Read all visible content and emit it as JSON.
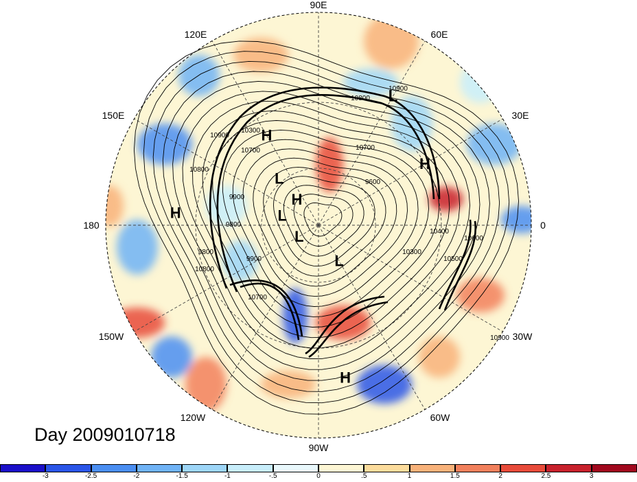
{
  "title": "Day 2009010718",
  "longitude_labels": {
    "e90": "90E",
    "e60": "60E",
    "e30": "30E",
    "zero": "0",
    "w30": "30W",
    "w60": "60W",
    "w90": "90W",
    "w120": "120W",
    "w150": "150W",
    "deg180": "180",
    "e150": "150E",
    "e120": "120E"
  },
  "pressure_centers": [
    {
      "label": "H",
      "lon": 120,
      "lat": 38
    },
    {
      "label": "L",
      "lon": 60,
      "lat": 20
    },
    {
      "label": "H",
      "lon": 30,
      "lat": 30
    },
    {
      "label": "H",
      "lon": 175,
      "lat": 22
    },
    {
      "label": "L",
      "lon": 130,
      "lat": 58
    },
    {
      "label": "H",
      "lon": 130,
      "lat": 72
    },
    {
      "label": "L",
      "lon": 165,
      "lat": 70
    },
    {
      "label": "L",
      "lon": -150,
      "lat": 78
    },
    {
      "label": "L",
      "lon": -60,
      "lat": 68
    },
    {
      "label": "H",
      "lon": -80,
      "lat": 18
    }
  ],
  "contour_labels": [
    "10900",
    "10800",
    "10700",
    "10900",
    "10300",
    "10700",
    "9900",
    "9800",
    "9800",
    "9600",
    "9900",
    "10700",
    "10800",
    "10300",
    "10400",
    "10500",
    "10600",
    "10900",
    "10800"
  ],
  "colorbar": {
    "labels": [
      "-3",
      "-2.5",
      "-2",
      "-1.5",
      "-1",
      "-.5",
      "0",
      ".5",
      "1",
      "1.5",
      "2",
      "2.5",
      "3"
    ],
    "colors": [
      "#1a0fc9",
      "#2a55e8",
      "#4a8ef2",
      "#6fb3f6",
      "#9dd6f8",
      "#c8eefb",
      "#e9f8fc",
      "#fdf6d4",
      "#fcdc9c",
      "#f8b27a",
      "#f2805c",
      "#e84b3a",
      "#c8212c",
      "#a1081d"
    ]
  }
}
